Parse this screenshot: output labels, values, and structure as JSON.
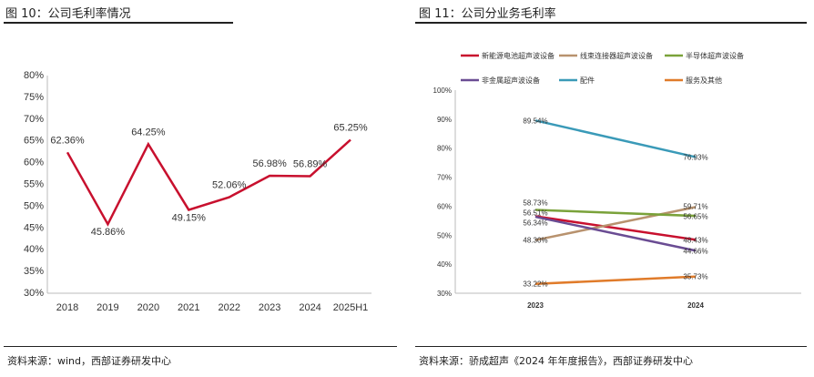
{
  "left": {
    "title": "图 10：公司毛利率情况",
    "source": "资料来源：wind，西部证券研发中心"
  },
  "right": {
    "title": "图 11：公司分业务毛利率",
    "source": "资料来源：骄成超声《2024 年年度报告》，西部证券研发中心"
  },
  "chart_data": [
    {
      "type": "line",
      "title": "",
      "categories": [
        "2018",
        "2019",
        "2020",
        "2021",
        "2022",
        "2023",
        "2024",
        "2025H1"
      ],
      "series": [
        {
          "values": [
            62.36,
            45.86,
            64.25,
            49.15,
            52.06,
            56.98,
            56.89,
            65.25
          ],
          "labels": [
            "62.36%",
            "45.86%",
            "64.25%",
            "49.15%",
            "52.06%",
            "56.98%",
            "56.89%",
            "65.25%"
          ],
          "color": "#c8102e"
        }
      ],
      "ylim": [
        30,
        80
      ],
      "yticks": [
        "30%",
        "35%",
        "40%",
        "45%",
        "50%",
        "55%",
        "60%",
        "65%",
        "70%",
        "75%",
        "80%"
      ],
      "grid": false
    },
    {
      "type": "line",
      "title": "",
      "categories": [
        "2023",
        "2024"
      ],
      "ylim": [
        30,
        100
      ],
      "yticks": [
        "30%",
        "40%",
        "50%",
        "60%",
        "70%",
        "80%",
        "90%",
        "100%"
      ],
      "grid": false,
      "legend": "top",
      "series": [
        {
          "name": "新能源电池超声波设备",
          "values": [
            56.51,
            48.43
          ],
          "labels": [
            "56.51%",
            "48.43%"
          ],
          "color": "#c8102e"
        },
        {
          "name": "线束连接器超声波设备",
          "values": [
            48.3,
            59.71
          ],
          "labels": [
            "48.30%",
            "59.71%"
          ],
          "color": "#b8926e"
        },
        {
          "name": "半导体超声波设备",
          "values": [
            58.73,
            56.65
          ],
          "labels": [
            "58.73%",
            "56.65%"
          ],
          "color": "#7aa23a"
        },
        {
          "name": "非金属超声波设备",
          "values": [
            56.34,
            44.66
          ],
          "labels": [
            "56.34%",
            "44.66%"
          ],
          "color": "#6a4c93"
        },
        {
          "name": "配件",
          "values": [
            89.54,
            76.93
          ],
          "labels": [
            "89.54%",
            "76.93%"
          ],
          "color": "#3a9ab8"
        },
        {
          "name": "服务及其他",
          "values": [
            33.22,
            35.73
          ],
          "labels": [
            "33.22%",
            "35.73%"
          ],
          "color": "#e07b2a"
        }
      ]
    }
  ]
}
